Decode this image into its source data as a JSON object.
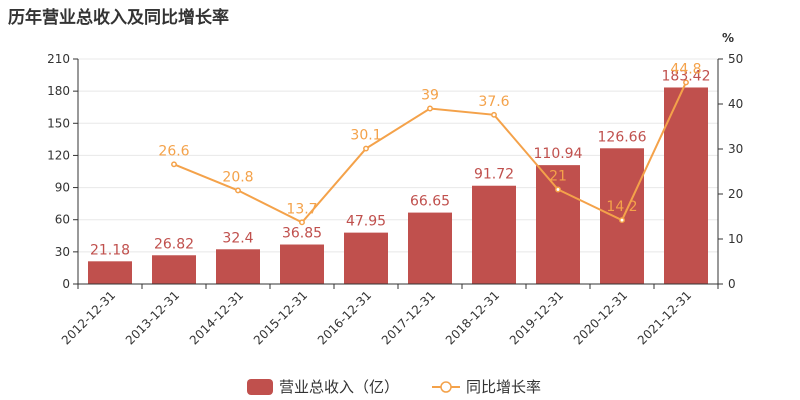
{
  "chart_data": {
    "type": "bar",
    "title": "历年营业总收入及同比增长率",
    "categories": [
      "2012-12-31",
      "2013-12-31",
      "2014-12-31",
      "2015-12-31",
      "2016-12-31",
      "2017-12-31",
      "2018-12-31",
      "2019-12-31",
      "2020-12-31",
      "2021-12-31"
    ],
    "series": [
      {
        "name": "营业总收入（亿）",
        "type": "bar",
        "axis": "left",
        "color": "#c0504d",
        "values": [
          21.18,
          26.82,
          32.4,
          36.85,
          47.95,
          66.65,
          91.72,
          110.94,
          126.66,
          183.42
        ],
        "labels": [
          "21.18",
          "26.82",
          "32.4",
          "36.85",
          "47.95",
          "66.65",
          "91.72",
          "110.94",
          "126.66",
          "183.42"
        ]
      },
      {
        "name": "同比增长率",
        "type": "line",
        "axis": "right",
        "color": "#f4a24a",
        "values": [
          null,
          26.6,
          20.8,
          13.7,
          30.1,
          39,
          37.6,
          21,
          14.2,
          44.8
        ],
        "labels": [
          "",
          "26.6",
          "20.8",
          "13.7",
          "30.1",
          "39",
          "37.6",
          "21",
          "14.2",
          "44.8"
        ]
      }
    ],
    "y_left": {
      "min": 0,
      "max": 210,
      "ticks": [
        "0",
        "30",
        "60",
        "90",
        "120",
        "150",
        "180",
        "210"
      ]
    },
    "y_right": {
      "min": 0,
      "max": 50,
      "unit": "%",
      "ticks": [
        "0",
        "10",
        "20",
        "30",
        "40",
        "50"
      ]
    },
    "legend_position": "bottom-center",
    "grid": "horizontal"
  }
}
